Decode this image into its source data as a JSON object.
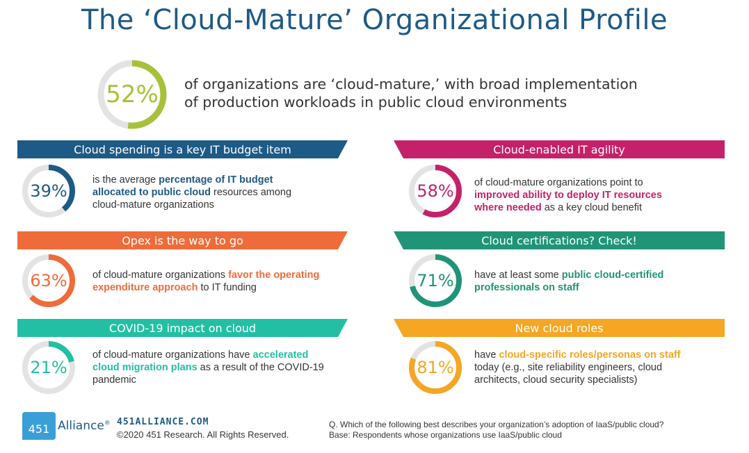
{
  "title": "The ‘Cloud-Mature’ Organizational Profile",
  "hero": {
    "percent_label": "52%",
    "percent_value": 52,
    "line1": "of organizations are ‘cloud-mature,’ with broad implementation",
    "line2": "of production workloads in public cloud environments",
    "color": "#a6c23a"
  },
  "sections": {
    "budget": {
      "banner": "Cloud spending is a key IT budget item",
      "color": "#1d5a86",
      "percent_label": "39%",
      "percent_value": 39,
      "text_before": "is the average ",
      "text_bold": "percentage of IT budget allocated to public cloud",
      "text_after": " resources among cloud-mature organizations"
    },
    "agility": {
      "banner": "Cloud-enabled IT agility",
      "color": "#c5216a",
      "percent_label": "58%",
      "percent_value": 58,
      "text_before": "of cloud-mature organizations point to ",
      "text_bold": "improved ability to deploy IT resources where needed",
      "text_after": " as a key cloud benefit"
    },
    "opex": {
      "banner": "Opex is the way to go",
      "color": "#ef6c3a",
      "percent_label": "63%",
      "percent_value": 63,
      "text_before": "of cloud-mature organizations ",
      "text_bold": "favor the operating expenditure approach",
      "text_after": " to IT funding"
    },
    "certs": {
      "banner": "Cloud certifications? Check!",
      "color": "#1f9477",
      "percent_label": "71%",
      "percent_value": 71,
      "text_before": "have at least some ",
      "text_bold": "public cloud-certified professionals on staff",
      "text_after": ""
    },
    "covid": {
      "banner": "COVID-19 impact on cloud",
      "color": "#23bfa4",
      "percent_label": "21%",
      "percent_value": 21,
      "text_before": "of cloud-mature organizations have ",
      "text_bold": "accelerated cloud migration plans",
      "text_after": " as a result of the COVID-19 pandemic"
    },
    "roles": {
      "banner": "New cloud roles",
      "color": "#f5a623",
      "percent_label": "81%",
      "percent_value": 81,
      "text_before": "have ",
      "text_bold": "cloud-specific roles/personas on staff",
      "text_after": " today (e.g., site reliability engineers, cloud architects, cloud security specialists)"
    }
  },
  "track_color": "#e3e3e3",
  "footer": {
    "logo_number": "451",
    "logo_word": "Alliance",
    "logo_mark": "®",
    "site": "451ALLIANCE.COM",
    "copyright": "©2020 451 Research. All Rights Reserved.",
    "question": "Q. Which of the following best describes your organization’s adoption of IaaS/public cloud?",
    "base": "Base: Respondents whose organizations use IaaS/public cloud"
  }
}
